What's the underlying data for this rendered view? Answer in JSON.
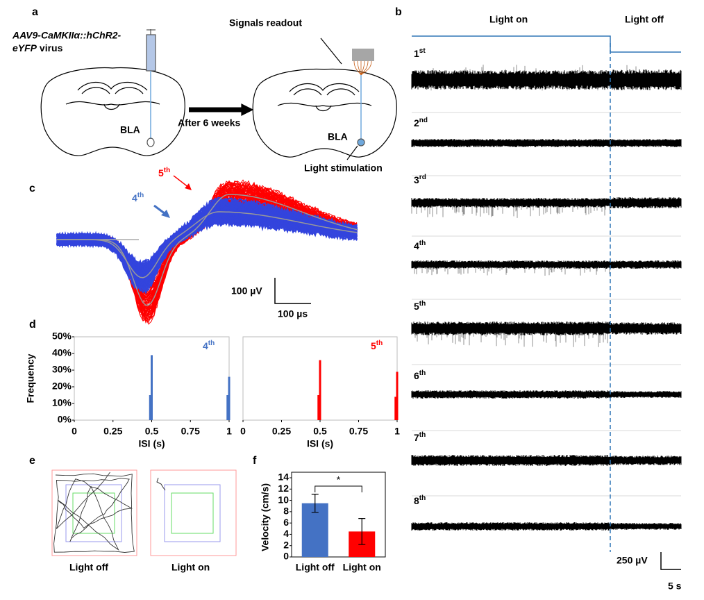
{
  "panel_labels": [
    "a",
    "b",
    "c",
    "d",
    "e",
    "f"
  ],
  "panel_a": {
    "virus_line1": "AAV9-CaMKIIα::hChR2-",
    "virus_line2_italic": "eYFP",
    "virus_line2": "virus",
    "readout": "Signals readout",
    "arrow": "After 6 weeks",
    "region_left": "BLA",
    "region_right": "BLA",
    "stimulation": "Light stimulation"
  },
  "panel_b": {
    "light_on": "Light on",
    "light_off": "Light off",
    "channels": [
      {
        "num": "1",
        "sup": "st"
      },
      {
        "num": "2",
        "sup": "nd"
      },
      {
        "num": "3",
        "sup": "rd"
      },
      {
        "num": "4",
        "sup": "th"
      },
      {
        "num": "5",
        "sup": "th"
      },
      {
        "num": "6",
        "sup": "th"
      },
      {
        "num": "7",
        "sup": "th"
      },
      {
        "num": "8",
        "sup": "th"
      }
    ],
    "scale_v": "250 µV",
    "scale_t": "5 s"
  },
  "panel_c": {
    "label_5": {
      "num": "5",
      "sup": "th"
    },
    "label_4": {
      "num": "4",
      "sup": "th"
    },
    "scale_v": "100 µV",
    "scale_t": "100 µs"
  },
  "panel_e": {
    "left": "Light off",
    "right": "Light on"
  },
  "chart_data": [
    {
      "type": "bar",
      "annotation": {
        "num": "4",
        "sup": "th"
      },
      "annotation_color": "#4472c4",
      "ylabel": "Frequency",
      "xlabel": "ISI (s)",
      "series": [
        {
          "color": "#4472c4",
          "x": [
            0.49,
            0.5,
            0.99,
            1.0
          ],
          "values": [
            15,
            39,
            15,
            26
          ]
        }
      ],
      "xlim": [
        0,
        1
      ],
      "xticks": [
        0,
        0.25,
        0.5,
        0.75,
        1
      ],
      "ylim": [
        0,
        50
      ],
      "yticks": [
        {
          "value": 0,
          "label": "0%"
        },
        {
          "value": 10,
          "label": "10%"
        },
        {
          "value": 20,
          "label": "20%"
        },
        {
          "value": 30,
          "label": "30%"
        },
        {
          "value": 40,
          "label": "40%"
        },
        {
          "value": 50,
          "label": "50%"
        }
      ]
    },
    {
      "type": "bar",
      "annotation": {
        "num": "5",
        "sup": "th"
      },
      "annotation_color": "#ff0000",
      "xlabel": "ISI (s)",
      "series": [
        {
          "color": "#ff0000",
          "x": [
            0.49,
            0.5,
            0.99,
            1.0
          ],
          "values": [
            15,
            36,
            14,
            29
          ]
        }
      ],
      "xlim": [
        0,
        1
      ],
      "xticks": [
        0,
        0.25,
        0.5,
        0.75,
        1
      ],
      "ylim": [
        0,
        50
      ]
    },
    {
      "type": "bar",
      "ylabel": "Velocity (cm/s)",
      "categories": [
        "Light off",
        "Light on"
      ],
      "values": [
        9.5,
        4.5
      ],
      "errors": [
        1.6,
        2.3
      ],
      "colors": [
        "#4472c4",
        "#ff0000"
      ],
      "ylim": [
        0,
        14
      ],
      "yticks": [
        0,
        2,
        4,
        6,
        8,
        10,
        12,
        14
      ],
      "annotation": "*"
    }
  ]
}
